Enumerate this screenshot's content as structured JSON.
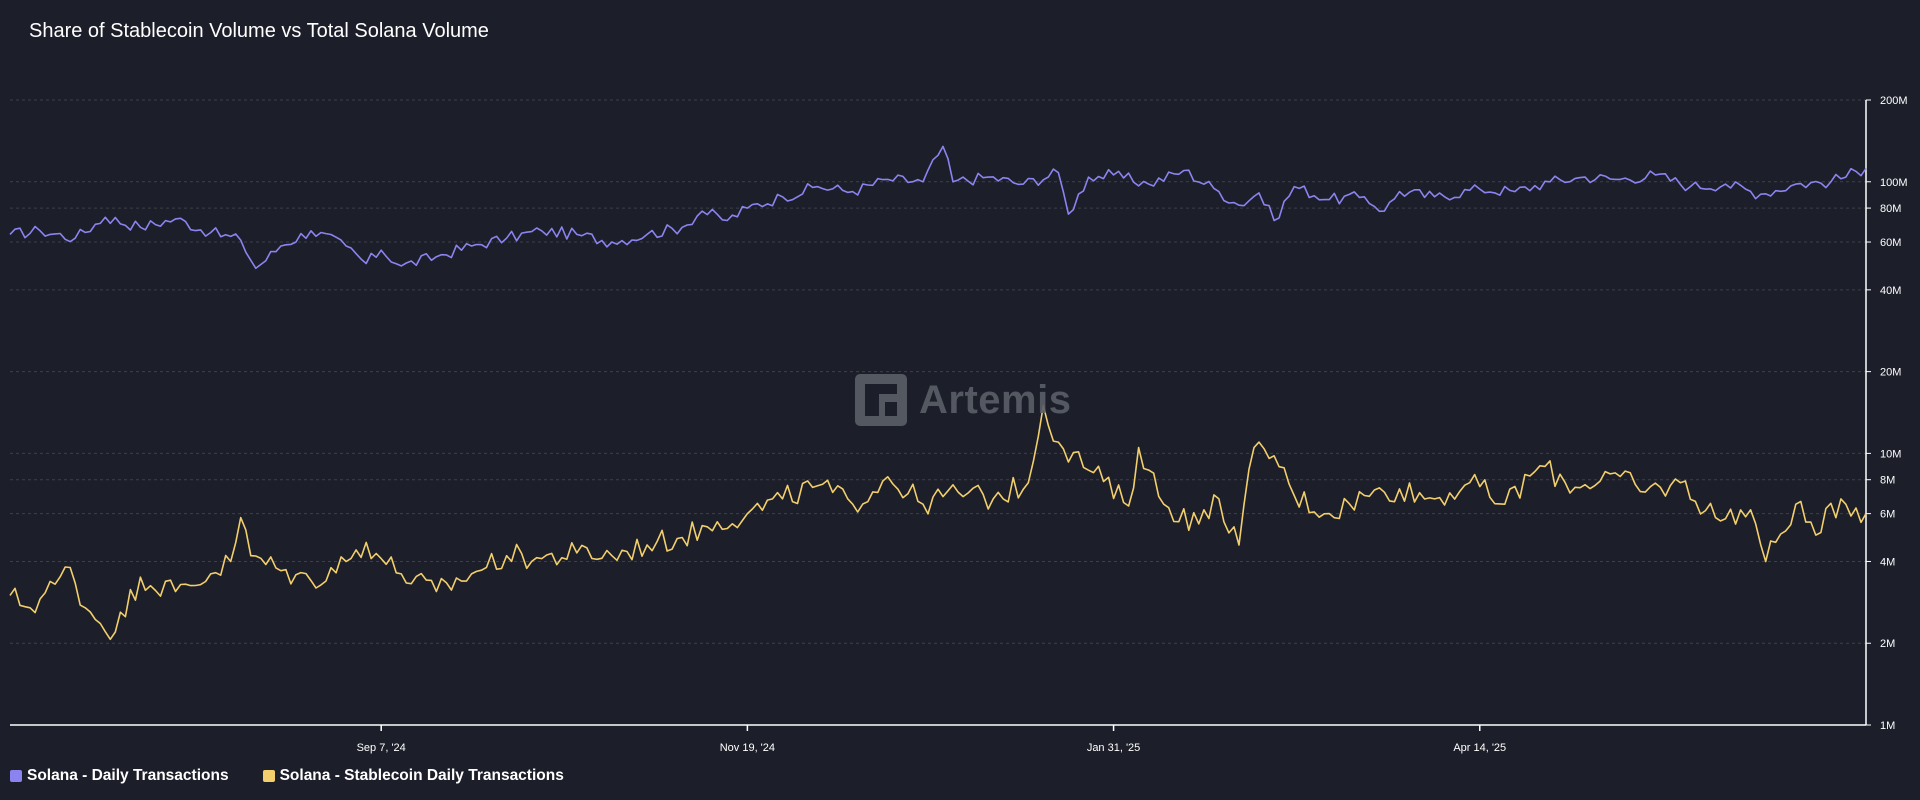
{
  "title": "Share of Stablecoin Volume vs Total Solana Volume",
  "watermark": {
    "text": "Artemis",
    "logo": "artemis-logo-icon"
  },
  "colors": {
    "background": "#1c1e29",
    "grid": "#3d4049",
    "axis": "#ffffff",
    "series1": "#8b84f0",
    "series2": "#f2cf6c"
  },
  "chart_data": {
    "type": "line",
    "y_scale": "log",
    "ylim": [
      1000000,
      200000000
    ],
    "y_ticks": [
      {
        "value": 1000000,
        "label": "1M"
      },
      {
        "value": 2000000,
        "label": "2M"
      },
      {
        "value": 4000000,
        "label": "4M"
      },
      {
        "value": 6000000,
        "label": "6M"
      },
      {
        "value": 8000000,
        "label": "8M"
      },
      {
        "value": 10000000,
        "label": "10M"
      },
      {
        "value": 20000000,
        "label": "20M"
      },
      {
        "value": 40000000,
        "label": "40M"
      },
      {
        "value": 60000000,
        "label": "60M"
      },
      {
        "value": 80000000,
        "label": "80M"
      },
      {
        "value": 100000000,
        "label": "100M"
      },
      {
        "value": 200000000,
        "label": "200M"
      }
    ],
    "x_ticks": [
      {
        "date": "2024-09-07",
        "label": "Sep 7, '24"
      },
      {
        "date": "2024-11-19",
        "label": "Nov 19, '24"
      },
      {
        "date": "2025-01-31",
        "label": "Jan 31, '25"
      },
      {
        "date": "2025-04-14",
        "label": "Apr 14, '25"
      }
    ],
    "xlim": [
      "2024-06-25",
      "2025-06-30"
    ],
    "grid": true,
    "legend": "bottom-left",
    "series": [
      {
        "name": "Solana - Daily Transactions",
        "color": "#8b84f0",
        "points": [
          [
            "2024-06-25",
            64000000
          ],
          [
            "2024-07-01",
            66000000
          ],
          [
            "2024-07-08",
            62000000
          ],
          [
            "2024-07-14",
            74000000
          ],
          [
            "2024-07-21",
            68000000
          ],
          [
            "2024-07-28",
            73000000
          ],
          [
            "2024-08-04",
            65000000
          ],
          [
            "2024-08-10",
            61000000
          ],
          [
            "2024-08-13",
            48000000
          ],
          [
            "2024-08-18",
            58000000
          ],
          [
            "2024-08-24",
            66000000
          ],
          [
            "2024-08-31",
            58000000
          ],
          [
            "2024-09-04",
            50000000
          ],
          [
            "2024-09-07",
            56000000
          ],
          [
            "2024-09-11",
            49000000
          ],
          [
            "2024-09-18",
            53000000
          ],
          [
            "2024-09-25",
            58000000
          ],
          [
            "2024-10-02",
            62000000
          ],
          [
            "2024-10-09",
            66000000
          ],
          [
            "2024-10-16",
            64000000
          ],
          [
            "2024-10-23",
            60000000
          ],
          [
            "2024-10-30",
            64000000
          ],
          [
            "2024-11-06",
            68000000
          ],
          [
            "2024-11-10",
            78000000
          ],
          [
            "2024-11-15",
            72000000
          ],
          [
            "2024-11-19",
            80000000
          ],
          [
            "2024-11-26",
            88000000
          ],
          [
            "2024-12-03",
            96000000
          ],
          [
            "2024-12-10",
            92000000
          ],
          [
            "2024-12-17",
            102000000
          ],
          [
            "2024-12-24",
            100000000
          ],
          [
            "2024-12-28",
            135000000
          ],
          [
            "2024-12-30",
            100000000
          ],
          [
            "2025-01-06",
            104000000
          ],
          [
            "2025-01-13",
            98000000
          ],
          [
            "2025-01-20",
            108000000
          ],
          [
            "2025-01-22",
            76000000
          ],
          [
            "2025-01-26",
            104000000
          ],
          [
            "2025-01-31",
            106000000
          ],
          [
            "2025-02-07",
            98000000
          ],
          [
            "2025-02-14",
            110000000
          ],
          [
            "2025-02-21",
            92000000
          ],
          [
            "2025-02-25",
            82000000
          ],
          [
            "2025-03-01",
            91000000
          ],
          [
            "2025-03-04",
            72000000
          ],
          [
            "2025-03-08",
            96000000
          ],
          [
            "2025-03-15",
            86000000
          ],
          [
            "2025-03-22",
            88000000
          ],
          [
            "2025-03-26",
            78000000
          ],
          [
            "2025-03-29",
            92000000
          ],
          [
            "2025-04-05",
            88000000
          ],
          [
            "2025-04-14",
            94000000
          ],
          [
            "2025-04-21",
            92000000
          ],
          [
            "2025-04-28",
            100000000
          ],
          [
            "2025-05-05",
            104000000
          ],
          [
            "2025-05-12",
            102000000
          ],
          [
            "2025-05-19",
            106000000
          ],
          [
            "2025-05-26",
            96000000
          ],
          [
            "2025-06-02",
            98000000
          ],
          [
            "2025-06-09",
            90000000
          ],
          [
            "2025-06-16",
            98000000
          ],
          [
            "2025-06-23",
            100000000
          ],
          [
            "2025-06-30",
            112000000
          ]
        ]
      },
      {
        "name": "Solana - Stablecoin Daily Transactions",
        "color": "#f2cf6c",
        "points": [
          [
            "2024-06-25",
            3000000
          ],
          [
            "2024-06-29",
            2700000
          ],
          [
            "2024-07-04",
            3300000
          ],
          [
            "2024-07-07",
            3800000
          ],
          [
            "2024-07-10",
            2700000
          ],
          [
            "2024-07-16",
            2200000
          ],
          [
            "2024-07-21",
            3500000
          ],
          [
            "2024-07-28",
            3100000
          ],
          [
            "2024-08-04",
            3600000
          ],
          [
            "2024-08-08",
            4000000
          ],
          [
            "2024-08-10",
            5800000
          ],
          [
            "2024-08-12",
            4200000
          ],
          [
            "2024-08-18",
            3700000
          ],
          [
            "2024-08-24",
            3400000
          ],
          [
            "2024-08-31",
            4000000
          ],
          [
            "2024-09-04",
            4700000
          ],
          [
            "2024-09-07",
            4100000
          ],
          [
            "2024-09-11",
            3600000
          ],
          [
            "2024-09-18",
            3100000
          ],
          [
            "2024-09-25",
            3600000
          ],
          [
            "2024-10-02",
            4200000
          ],
          [
            "2024-10-09",
            4100000
          ],
          [
            "2024-10-16",
            4300000
          ],
          [
            "2024-10-23",
            4200000
          ],
          [
            "2024-10-30",
            4600000
          ],
          [
            "2024-11-06",
            4900000
          ],
          [
            "2024-11-13",
            5600000
          ],
          [
            "2024-11-19",
            6000000
          ],
          [
            "2024-11-26",
            6800000
          ],
          [
            "2024-12-03",
            7600000
          ],
          [
            "2024-12-10",
            6500000
          ],
          [
            "2024-12-17",
            8200000
          ],
          [
            "2024-12-24",
            6500000
          ],
          [
            "2024-12-31",
            7200000
          ],
          [
            "2025-01-07",
            6800000
          ],
          [
            "2025-01-14",
            7800000
          ],
          [
            "2025-01-17",
            15000000
          ],
          [
            "2025-01-20",
            11000000
          ],
          [
            "2025-01-27",
            8500000
          ],
          [
            "2025-02-03",
            6400000
          ],
          [
            "2025-02-05",
            10500000
          ],
          [
            "2025-02-10",
            6500000
          ],
          [
            "2025-02-17",
            5500000
          ],
          [
            "2025-02-21",
            6800000
          ],
          [
            "2025-02-25",
            4600000
          ],
          [
            "2025-02-28",
            10500000
          ],
          [
            "2025-03-04",
            9800000
          ],
          [
            "2025-03-08",
            7000000
          ],
          [
            "2025-03-15",
            6000000
          ],
          [
            "2025-03-22",
            7000000
          ],
          [
            "2025-03-29",
            7400000
          ],
          [
            "2025-04-05",
            6800000
          ],
          [
            "2025-04-12",
            7800000
          ],
          [
            "2025-04-19",
            6500000
          ],
          [
            "2025-04-26",
            9000000
          ],
          [
            "2025-05-03",
            7500000
          ],
          [
            "2025-05-10",
            8400000
          ],
          [
            "2025-05-17",
            7200000
          ],
          [
            "2025-05-24",
            7800000
          ],
          [
            "2025-05-31",
            5800000
          ],
          [
            "2025-06-07",
            6200000
          ],
          [
            "2025-06-10",
            4000000
          ],
          [
            "2025-06-16",
            6500000
          ],
          [
            "2025-06-20",
            5000000
          ],
          [
            "2025-06-25",
            6800000
          ],
          [
            "2025-06-30",
            6000000
          ]
        ]
      }
    ]
  }
}
